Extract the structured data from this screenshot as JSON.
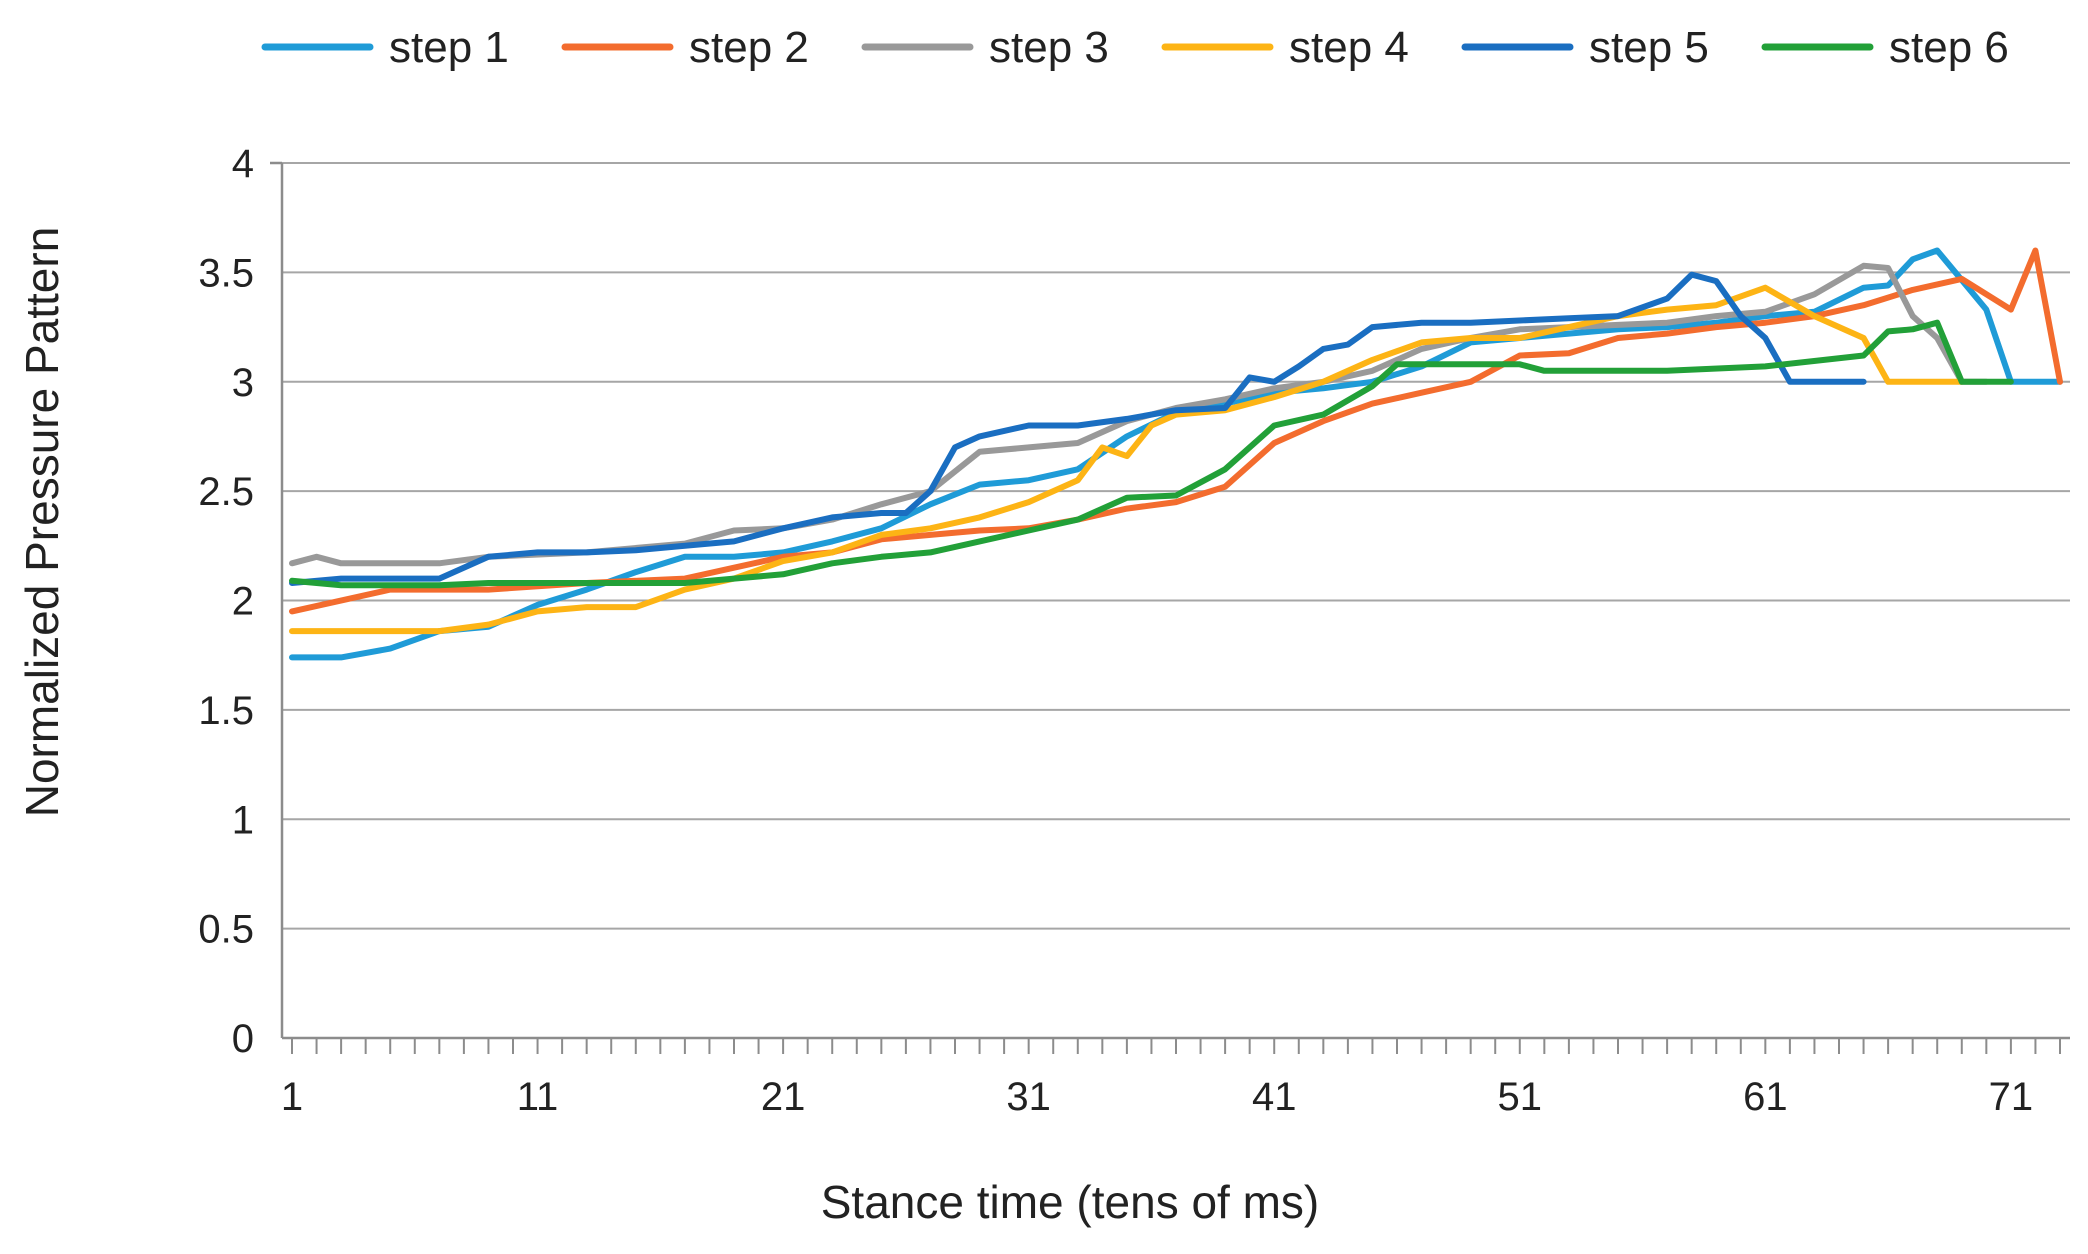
{
  "chart_data": {
    "type": "line",
    "title": "",
    "xlabel": "Stance time (tens of ms)",
    "ylabel": "Normalized Pressure Pattern",
    "xlim": [
      1,
      73
    ],
    "ylim": [
      0,
      4
    ],
    "x_ticks": [
      "1",
      "11",
      "21",
      "31",
      "41",
      "51",
      "61",
      "71"
    ],
    "y_ticks": [
      "0",
      "0.5",
      "1",
      "1.5",
      "2",
      "2.5",
      "3",
      "3.5",
      "4"
    ],
    "grid": "horizontal",
    "legend_position": "top",
    "series": [
      {
        "name": "step 1",
        "color": "#1f9bd7",
        "points": [
          [
            1,
            1.74
          ],
          [
            3,
            1.74
          ],
          [
            5,
            1.78
          ],
          [
            7,
            1.86
          ],
          [
            9,
            1.88
          ],
          [
            11,
            1.98
          ],
          [
            13,
            2.05
          ],
          [
            15,
            2.13
          ],
          [
            17,
            2.2
          ],
          [
            19,
            2.2
          ],
          [
            21,
            2.22
          ],
          [
            23,
            2.27
          ],
          [
            25,
            2.33
          ],
          [
            27,
            2.44
          ],
          [
            29,
            2.53
          ],
          [
            31,
            2.55
          ],
          [
            33,
            2.6
          ],
          [
            35,
            2.75
          ],
          [
            37,
            2.86
          ],
          [
            39,
            2.9
          ],
          [
            41,
            2.95
          ],
          [
            43,
            2.97
          ],
          [
            45,
            3.0
          ],
          [
            47,
            3.07
          ],
          [
            49,
            3.18
          ],
          [
            51,
            3.2
          ],
          [
            53,
            3.22
          ],
          [
            55,
            3.24
          ],
          [
            57,
            3.25
          ],
          [
            59,
            3.27
          ],
          [
            61,
            3.3
          ],
          [
            63,
            3.32
          ],
          [
            65,
            3.43
          ],
          [
            66,
            3.44
          ],
          [
            67,
            3.56
          ],
          [
            68,
            3.6
          ],
          [
            70,
            3.33
          ],
          [
            71,
            3.0
          ],
          [
            73,
            3.0
          ]
        ]
      },
      {
        "name": "step 2",
        "color": "#f36c2e",
        "points": [
          [
            1,
            1.95
          ],
          [
            5,
            2.05
          ],
          [
            9,
            2.05
          ],
          [
            13,
            2.08
          ],
          [
            17,
            2.1
          ],
          [
            19,
            2.15
          ],
          [
            21,
            2.2
          ],
          [
            23,
            2.22
          ],
          [
            25,
            2.28
          ],
          [
            27,
            2.3
          ],
          [
            29,
            2.32
          ],
          [
            31,
            2.33
          ],
          [
            33,
            2.37
          ],
          [
            35,
            2.42
          ],
          [
            37,
            2.45
          ],
          [
            39,
            2.52
          ],
          [
            41,
            2.72
          ],
          [
            43,
            2.82
          ],
          [
            45,
            2.9
          ],
          [
            47,
            2.95
          ],
          [
            49,
            3.0
          ],
          [
            51,
            3.12
          ],
          [
            53,
            3.13
          ],
          [
            55,
            3.2
          ],
          [
            57,
            3.22
          ],
          [
            59,
            3.25
          ],
          [
            61,
            3.27
          ],
          [
            63,
            3.3
          ],
          [
            65,
            3.35
          ],
          [
            67,
            3.42
          ],
          [
            69,
            3.47
          ],
          [
            71,
            3.33
          ],
          [
            72,
            3.6
          ],
          [
            73,
            3.0
          ]
        ]
      },
      {
        "name": "step 3",
        "color": "#999999",
        "points": [
          [
            1,
            2.17
          ],
          [
            2,
            2.2
          ],
          [
            3,
            2.17
          ],
          [
            7,
            2.17
          ],
          [
            9,
            2.2
          ],
          [
            13,
            2.22
          ],
          [
            17,
            2.26
          ],
          [
            19,
            2.32
          ],
          [
            21,
            2.33
          ],
          [
            23,
            2.37
          ],
          [
            25,
            2.44
          ],
          [
            27,
            2.5
          ],
          [
            29,
            2.68
          ],
          [
            31,
            2.7
          ],
          [
            33,
            2.72
          ],
          [
            35,
            2.82
          ],
          [
            37,
            2.88
          ],
          [
            39,
            2.92
          ],
          [
            41,
            2.97
          ],
          [
            43,
            3.0
          ],
          [
            45,
            3.05
          ],
          [
            47,
            3.15
          ],
          [
            49,
            3.2
          ],
          [
            51,
            3.24
          ],
          [
            53,
            3.25
          ],
          [
            55,
            3.26
          ],
          [
            57,
            3.27
          ],
          [
            59,
            3.3
          ],
          [
            61,
            3.32
          ],
          [
            63,
            3.4
          ],
          [
            65,
            3.53
          ],
          [
            66,
            3.52
          ],
          [
            67,
            3.3
          ],
          [
            68,
            3.2
          ],
          [
            69,
            3.0
          ],
          [
            70,
            3.0
          ]
        ]
      },
      {
        "name": "step 4",
        "color": "#fdb415",
        "points": [
          [
            1,
            1.86
          ],
          [
            3,
            1.86
          ],
          [
            5,
            1.86
          ],
          [
            7,
            1.86
          ],
          [
            9,
            1.89
          ],
          [
            11,
            1.95
          ],
          [
            13,
            1.97
          ],
          [
            15,
            1.97
          ],
          [
            17,
            2.05
          ],
          [
            19,
            2.1
          ],
          [
            21,
            2.18
          ],
          [
            23,
            2.22
          ],
          [
            25,
            2.3
          ],
          [
            27,
            2.33
          ],
          [
            29,
            2.38
          ],
          [
            31,
            2.45
          ],
          [
            33,
            2.55
          ],
          [
            34,
            2.7
          ],
          [
            35,
            2.66
          ],
          [
            36,
            2.8
          ],
          [
            37,
            2.85
          ],
          [
            39,
            2.87
          ],
          [
            41,
            2.93
          ],
          [
            43,
            3.0
          ],
          [
            45,
            3.1
          ],
          [
            47,
            3.18
          ],
          [
            49,
            3.2
          ],
          [
            51,
            3.2
          ],
          [
            53,
            3.25
          ],
          [
            55,
            3.3
          ],
          [
            57,
            3.33
          ],
          [
            59,
            3.35
          ],
          [
            61,
            3.43
          ],
          [
            63,
            3.3
          ],
          [
            65,
            3.2
          ],
          [
            66,
            3.0
          ],
          [
            69,
            3.0
          ]
        ]
      },
      {
        "name": "step 5",
        "color": "#1a6ec1",
        "points": [
          [
            1,
            2.08
          ],
          [
            3,
            2.1
          ],
          [
            7,
            2.1
          ],
          [
            9,
            2.2
          ],
          [
            11,
            2.22
          ],
          [
            13,
            2.22
          ],
          [
            15,
            2.23
          ],
          [
            17,
            2.25
          ],
          [
            19,
            2.27
          ],
          [
            21,
            2.33
          ],
          [
            23,
            2.38
          ],
          [
            25,
            2.4
          ],
          [
            26,
            2.4
          ],
          [
            27,
            2.5
          ],
          [
            28,
            2.7
          ],
          [
            29,
            2.75
          ],
          [
            31,
            2.8
          ],
          [
            33,
            2.8
          ],
          [
            35,
            2.83
          ],
          [
            37,
            2.87
          ],
          [
            39,
            2.88
          ],
          [
            40,
            3.02
          ],
          [
            41,
            3.0
          ],
          [
            42,
            3.07
          ],
          [
            43,
            3.15
          ],
          [
            44,
            3.17
          ],
          [
            45,
            3.25
          ],
          [
            47,
            3.27
          ],
          [
            49,
            3.27
          ],
          [
            51,
            3.28
          ],
          [
            53,
            3.29
          ],
          [
            55,
            3.3
          ],
          [
            57,
            3.38
          ],
          [
            58,
            3.49
          ],
          [
            59,
            3.46
          ],
          [
            60,
            3.3
          ],
          [
            61,
            3.2
          ],
          [
            62,
            3.0
          ],
          [
            63,
            3.0
          ],
          [
            65,
            3.0
          ]
        ]
      },
      {
        "name": "step 6",
        "color": "#22a038",
        "points": [
          [
            1,
            2.09
          ],
          [
            3,
            2.07
          ],
          [
            7,
            2.07
          ],
          [
            9,
            2.08
          ],
          [
            11,
            2.08
          ],
          [
            13,
            2.08
          ],
          [
            15,
            2.08
          ],
          [
            17,
            2.08
          ],
          [
            19,
            2.1
          ],
          [
            21,
            2.12
          ],
          [
            23,
            2.17
          ],
          [
            25,
            2.2
          ],
          [
            27,
            2.22
          ],
          [
            29,
            2.27
          ],
          [
            31,
            2.32
          ],
          [
            33,
            2.37
          ],
          [
            35,
            2.47
          ],
          [
            37,
            2.48
          ],
          [
            39,
            2.6
          ],
          [
            41,
            2.8
          ],
          [
            43,
            2.85
          ],
          [
            45,
            2.98
          ],
          [
            46,
            3.08
          ],
          [
            48,
            3.08
          ],
          [
            51,
            3.08
          ],
          [
            52,
            3.05
          ],
          [
            57,
            3.05
          ],
          [
            61,
            3.07
          ],
          [
            65,
            3.12
          ],
          [
            66,
            3.23
          ],
          [
            67,
            3.24
          ],
          [
            68,
            3.27
          ],
          [
            69,
            3.0
          ],
          [
            71,
            3.0
          ]
        ]
      }
    ]
  }
}
